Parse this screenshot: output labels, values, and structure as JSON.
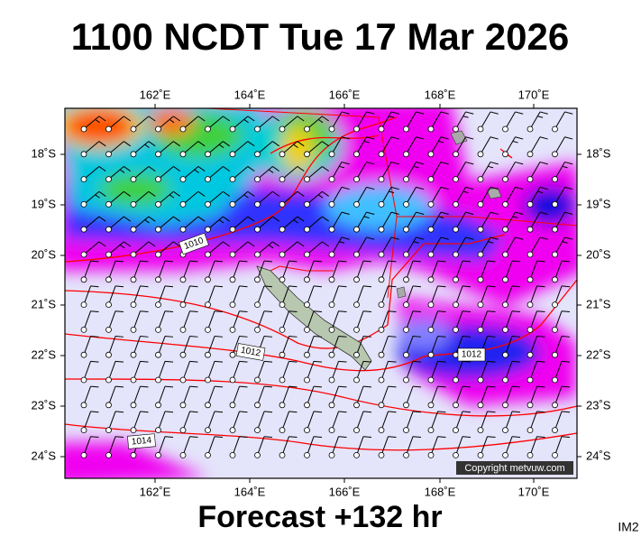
{
  "header": {
    "title": "1100 NCDT Tue 17 Mar 2026"
  },
  "map": {
    "lon_labels": [
      "162˚E",
      "164˚E",
      "166˚E",
      "168˚E",
      "170˚E"
    ],
    "lat_labels": [
      "18˚S",
      "19˚S",
      "20˚S",
      "21˚S",
      "22˚S",
      "23˚S",
      "24˚S"
    ],
    "isobar_labels": [
      "1010",
      "1012",
      "1012",
      "1014"
    ],
    "copyright": "Copyright metvuw.com"
  },
  "footer": {
    "forecast": "Forecast +132 hr",
    "code": "IM2"
  }
}
